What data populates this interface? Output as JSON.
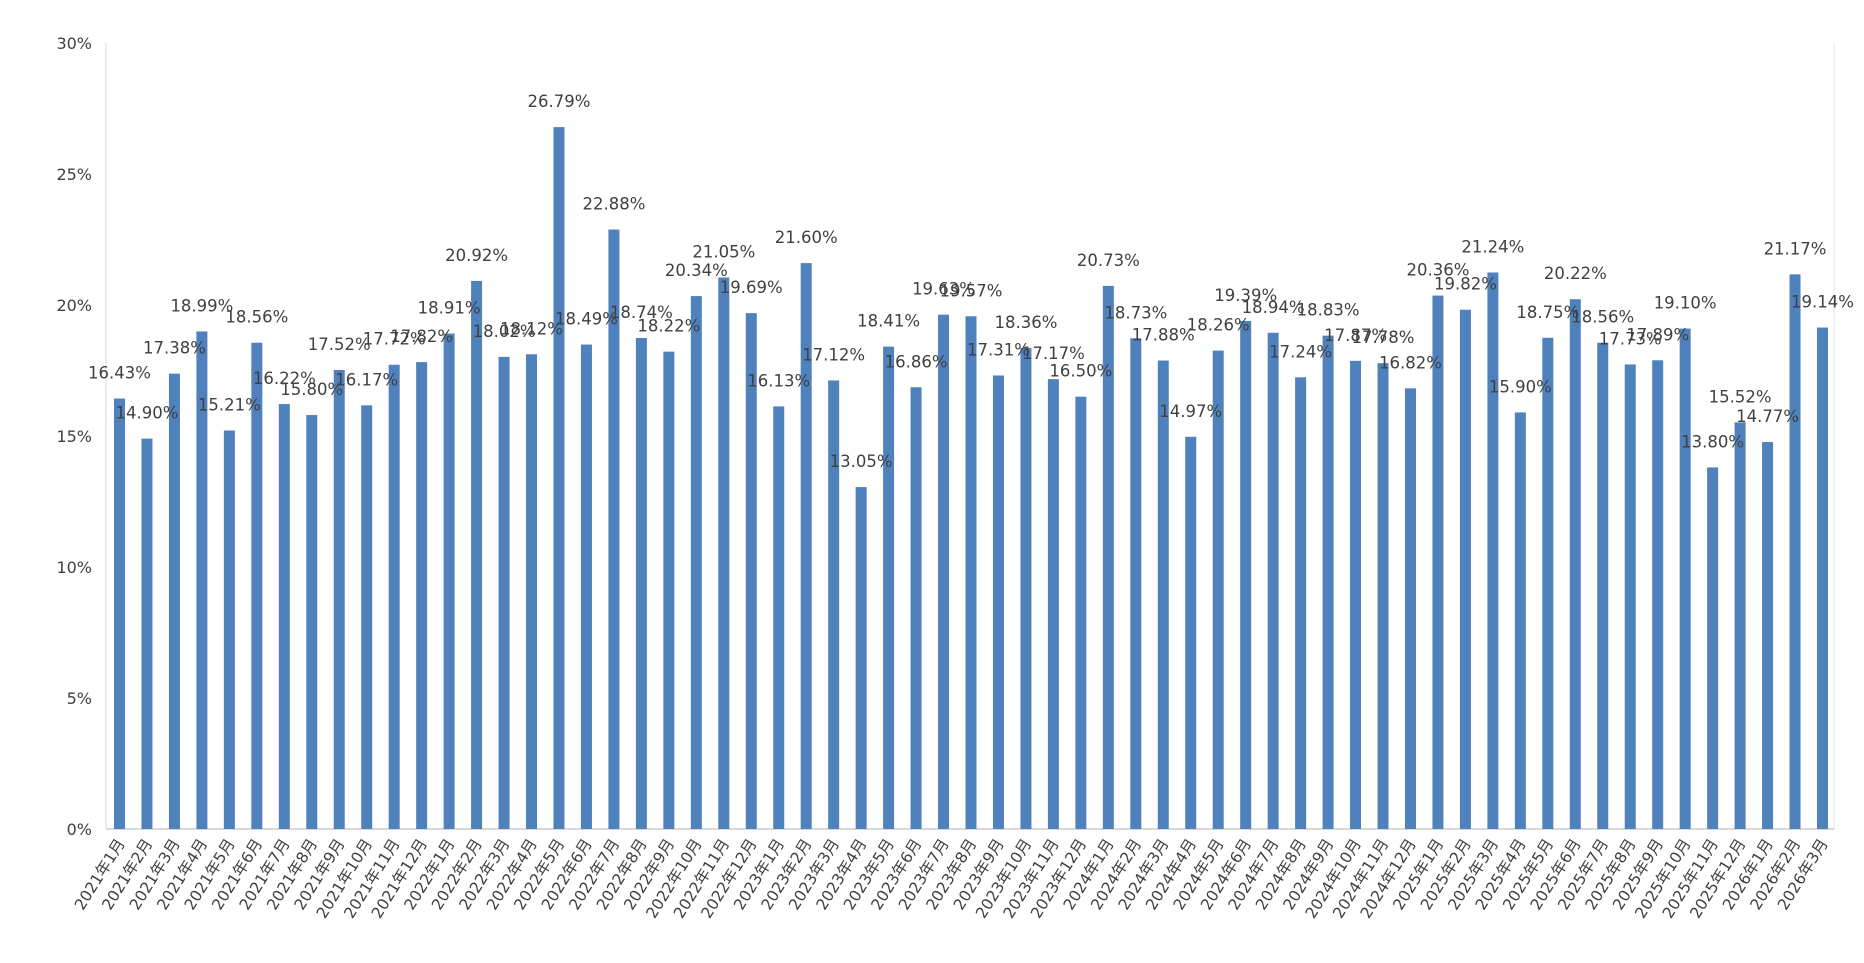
{
  "chart_data": {
    "type": "bar",
    "title": "",
    "xlabel": "",
    "ylabel": "",
    "ylim": [
      0,
      30
    ],
    "yticks": [
      "0%",
      "5%",
      "10%",
      "15%",
      "20%",
      "25%",
      "30%"
    ],
    "grid": false,
    "legend": "none",
    "bar_color": "#4f81bd",
    "categories": [
      "2021年1月",
      "2021年2月",
      "2021年3月",
      "2021年4月",
      "2021年5月",
      "2021年6月",
      "2021年7月",
      "2021年8月",
      "2021年9月",
      "2021年10月",
      "2021年11月",
      "2021年12月",
      "2022年1月",
      "2022年2月",
      "2022年3月",
      "2022年4月",
      "2022年5月",
      "2022年6月",
      "2022年7月",
      "2022年8月",
      "2022年9月",
      "2022年10月",
      "2022年11月",
      "2022年12月",
      "2023年1月",
      "2023年2月",
      "2023年3月",
      "2023年4月",
      "2023年5月",
      "2023年6月",
      "2023年7月",
      "2023年8月",
      "2023年9月",
      "2023年10月",
      "2023年11月",
      "2023年12月",
      "2024年1月",
      "2024年2月",
      "2024年3月",
      "2024年4月",
      "2024年5月",
      "2024年6月",
      "2024年7月",
      "2024年8月",
      "2024年9月",
      "2024年10月",
      "2024年11月",
      "2024年12月",
      "2025年1月",
      "2025年2月",
      "2025年3月",
      "2025年4月",
      "2025年5月",
      "2025年6月",
      "2025年7月",
      "2025年8月",
      "2025年9月",
      "2025年10月",
      "2025年11月",
      "2025年12月",
      "2026年1月",
      "2026年2月",
      "2026年3月"
    ],
    "values": [
      16.43,
      14.9,
      17.38,
      18.99,
      15.21,
      18.56,
      16.22,
      15.8,
      17.52,
      16.17,
      17.72,
      17.82,
      18.91,
      20.92,
      18.02,
      18.12,
      26.79,
      18.49,
      22.88,
      18.74,
      18.22,
      20.34,
      21.05,
      19.69,
      16.13,
      21.6,
      17.12,
      13.05,
      18.41,
      16.86,
      19.63,
      19.57,
      17.31,
      18.36,
      17.17,
      16.5,
      20.73,
      18.73,
      17.88,
      14.97,
      18.26,
      19.39,
      18.94,
      17.24,
      18.83,
      17.87,
      17.78,
      16.82,
      20.36,
      19.82,
      21.24,
      15.9,
      18.75,
      20.22,
      18.56,
      17.73,
      17.89,
      19.1,
      13.8,
      15.52,
      14.77,
      21.17,
      19.14
    ],
    "data_labels": [
      "16.43%",
      "14.90%",
      "17.38%",
      "18.99%",
      "15.21%",
      "18.56%",
      "16.22%",
      "15.80%",
      "17.52%",
      "16.17%",
      "17.72%",
      "17.82%",
      "18.91%",
      "20.92%",
      "18.02%",
      "18.12%",
      "26.79%",
      "18.49%",
      "22.88%",
      "18.74%",
      "18.22%",
      "20.34%",
      "21.05%",
      "19.69%",
      "16.13%",
      "21.60%",
      "17.12%",
      "13.05%",
      "18.41%",
      "16.86%",
      "19.63%",
      "19.57%",
      "17.31%",
      "18.36%",
      "17.17%",
      "16.50%",
      "20.73%",
      "18.73%",
      "17.88%",
      "14.97%",
      "18.26%",
      "19.39%",
      "18.94%",
      "17.24%",
      "18.83%",
      "17.87%",
      "17.78%",
      "16.82%",
      "20.36%",
      "19.82%",
      "21.24%",
      "15.90%",
      "18.75%",
      "20.22%",
      "18.56%",
      "17.73%",
      "17.89%",
      "19.10%",
      "13.80%",
      "15.52%",
      "14.77%",
      "21.17%",
      "19.14%"
    ]
  }
}
